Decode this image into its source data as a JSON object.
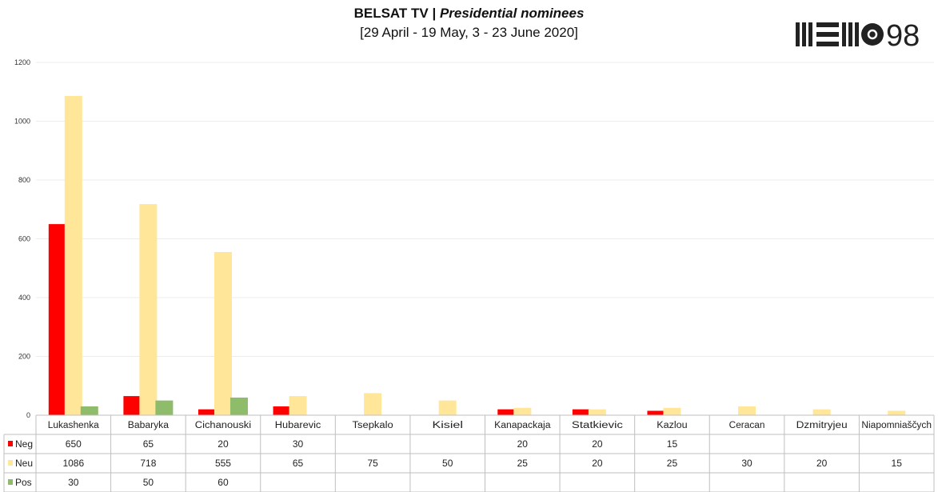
{
  "chart_data": {
    "type": "bar",
    "title_bold": "BELSAT TV | ",
    "title_italic": "Presidential nominees",
    "subtitle": "[29 April - 19 May, 3 - 23 June 2020]",
    "categories": [
      "Lukashenka",
      "Babaryka",
      "Cichanouski",
      "Hubarevic",
      "Tsepkalo",
      "Kisiel",
      "Kanapackaja",
      "Statkievic",
      "Kazlou",
      "Ceracan",
      "Dzmitryjeu",
      "Niapomniaščych"
    ],
    "series": [
      {
        "name": "Neg",
        "color": "#ff0000",
        "values": [
          650,
          65,
          20,
          30,
          null,
          null,
          20,
          20,
          15,
          null,
          null,
          null
        ]
      },
      {
        "name": "Neu",
        "color": "#ffe699",
        "values": [
          1086,
          718,
          555,
          65,
          75,
          50,
          25,
          20,
          25,
          30,
          20,
          15
        ]
      },
      {
        "name": "Pos",
        "color": "#8fbc6a",
        "values": [
          30,
          50,
          60,
          null,
          null,
          null,
          null,
          null,
          null,
          null,
          null,
          null
        ]
      }
    ],
    "ylim": [
      0,
      1200
    ],
    "yticks": [
      0,
      200,
      400,
      600,
      800,
      1000,
      1200
    ],
    "grid": true,
    "legend": "data-table"
  },
  "logo": {
    "text": "98"
  }
}
